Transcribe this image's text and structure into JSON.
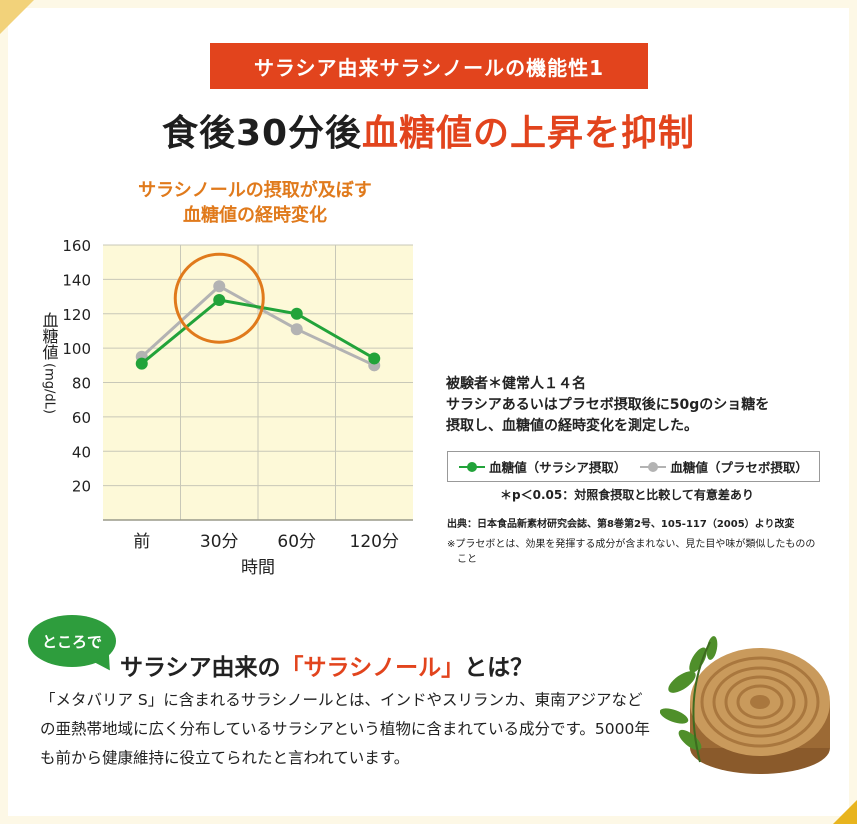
{
  "banner": "サラシア由来サラシノールの機能性1",
  "headline": {
    "part1": "食後30分後",
    "part2": "血糖値の上昇を抑制"
  },
  "chart_data": {
    "type": "line",
    "title_line1": "サラシノールの摂取が及ぼす",
    "title_line2": "血糖値の経時変化",
    "ylabel_main": "血糖値",
    "ylabel_unit": "(mg/dL)",
    "xlabel": "時間",
    "categories": [
      "前",
      "30分",
      "60分",
      "120分"
    ],
    "yticks": [
      20,
      40,
      60,
      80,
      100,
      120,
      140,
      160
    ],
    "ylim": [
      0,
      160
    ],
    "series": [
      {
        "name": "血糖値（サラシア摂取）",
        "color": "#22a33a",
        "values": [
          91,
          128,
          120,
          94
        ]
      },
      {
        "name": "血糖値（プラセボ摂取）",
        "color": "#b3b3b3",
        "values": [
          95,
          136,
          111,
          90
        ]
      }
    ],
    "highlight_category": "30分",
    "highlight_color": "#e07a1c",
    "plot_background": "#fdf9d8",
    "grid": true
  },
  "description": {
    "line1": "被験者＊健常人１４名",
    "line2": "サラシアあるいはプラセボ摂取後に50gのショ糖を",
    "line3": "摂取し、血糖値の経時変化を測定した。"
  },
  "legend": {
    "sarashia": "血糖値（サラシア摂取）",
    "placebo": "血糖値（プラセボ摂取）"
  },
  "p_note": "＊p＜0.05：対照食摂取と比較して有意差あり",
  "source": "出典：日本食品新素材研究会誌、第8巻第2号、105-117（2005）より改変",
  "footnote": "※プラセボとは、効果を発揮する成分が含まれない、見た目や味が類似したもののこと",
  "bubble": "ところで",
  "sub_heading": {
    "part1": "サラシア由来の",
    "part2": "「サラシノール」",
    "part3": "とは？"
  },
  "body_text": "「メタバリア S」に含まれるサラシノールとは、インドやスリランカ、東南アジアなどの亜熱帯地域に広く分布しているサラシアという植物に含まれている成分です。5000年も前から健康維持に役立てられたと言われています。"
}
